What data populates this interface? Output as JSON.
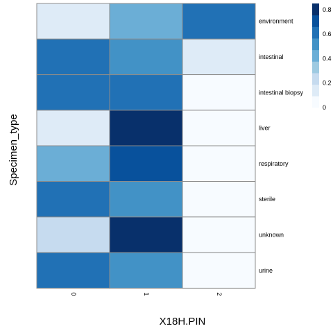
{
  "chart_data": {
    "type": "heatmap",
    "xlabel": "X18H.PIN",
    "ylabel": "Specimen_type",
    "x_categories": [
      "0",
      "1",
      "2"
    ],
    "y_categories": [
      "environment",
      "intestinal",
      "intestinal biopsy",
      "liver",
      "respiratory",
      "sterile",
      "unknown",
      "urine"
    ],
    "values": [
      [
        0.15,
        0.4,
        0.65
      ],
      [
        0.6,
        0.5,
        0.15
      ],
      [
        0.6,
        0.6,
        0.02
      ],
      [
        0.15,
        0.85,
        0.02
      ],
      [
        0.4,
        0.7,
        0.02
      ],
      [
        0.6,
        0.5,
        0.02
      ],
      [
        0.25,
        0.85,
        0.02
      ],
      [
        0.6,
        0.5,
        0.02
      ]
    ],
    "colorbar": {
      "range": [
        0,
        0.85
      ],
      "ticks": [
        0,
        0.2,
        0.4,
        0.6,
        0.8
      ],
      "tick_labels": [
        "0",
        "0.2",
        "0.4",
        "0.6",
        "0.8"
      ],
      "palette": [
        "#F7FBFF",
        "#DEEBF7",
        "#C6DBEF",
        "#9ECAE1",
        "#6BAED6",
        "#4292C6",
        "#2171B5",
        "#08519C",
        "#08306B"
      ]
    },
    "legend_position": "top-right",
    "grid": false
  }
}
